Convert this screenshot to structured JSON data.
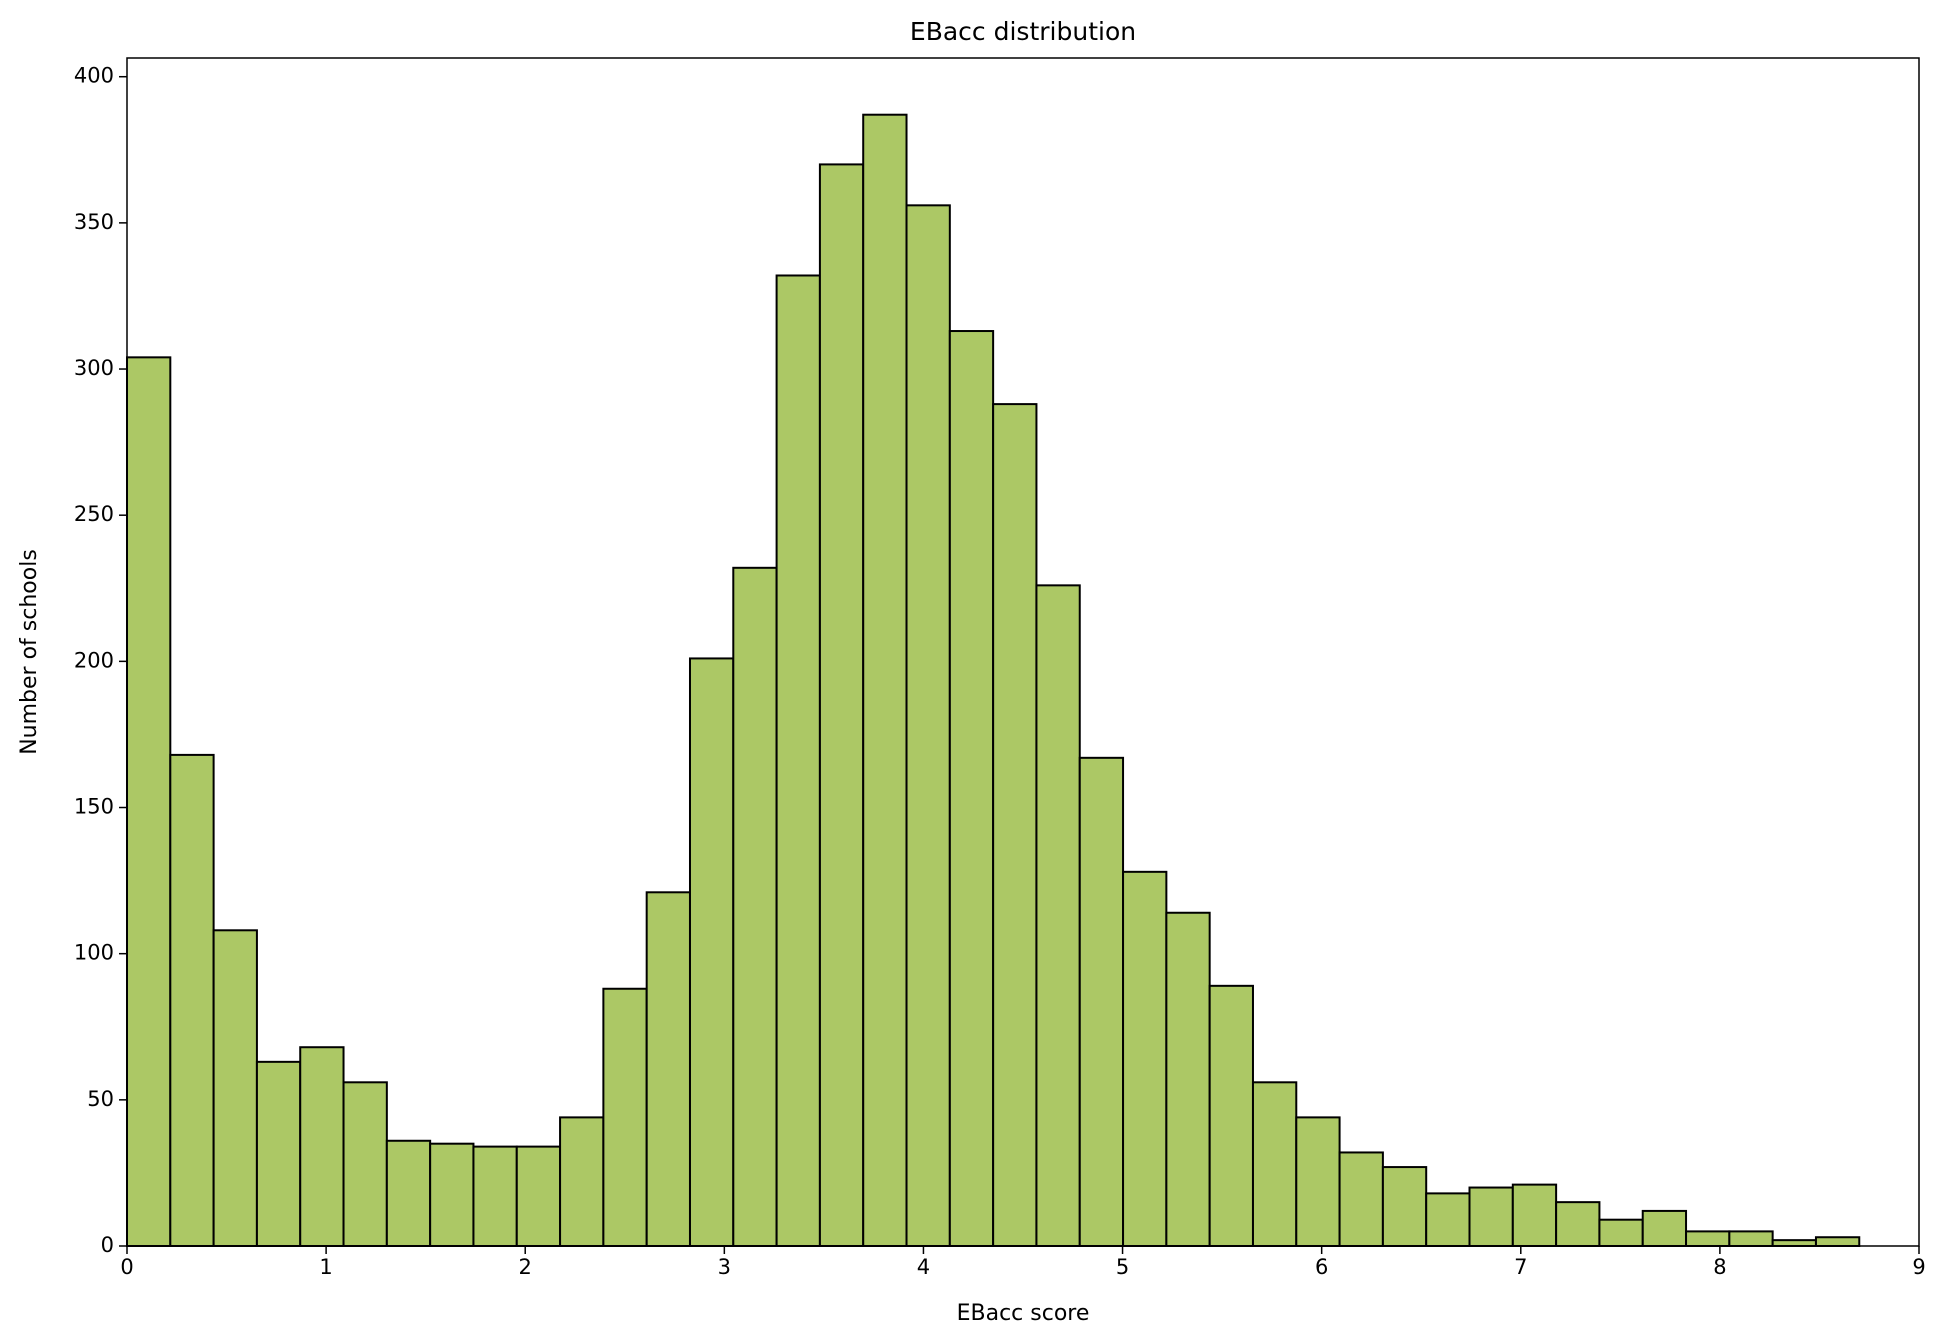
{
  "chart_data": {
    "type": "histogram",
    "title": "EBacc distribution",
    "x_label": "EBacc score",
    "y_label": "Number of schools",
    "bins": [
      0,
      0.2175,
      0.435,
      0.6525,
      0.87,
      1.0875,
      1.305,
      1.5225,
      1.74,
      1.9575,
      2.175,
      2.3925,
      2.61,
      2.8275,
      3.045,
      3.2625,
      3.48,
      3.6975,
      3.915,
      4.1325,
      4.35,
      4.5675,
      4.785,
      5.0025,
      5.22,
      5.4375,
      5.655,
      5.8725,
      6.09,
      6.3075,
      6.525,
      6.7425,
      6.96,
      7.1775,
      7.395,
      7.6125,
      7.83,
      8.0475,
      8.265,
      8.4825,
      8.7
    ],
    "values": [
      304,
      168,
      108,
      63,
      68,
      56,
      36,
      35,
      34,
      34,
      44,
      88,
      121,
      201,
      232,
      332,
      370,
      387,
      356,
      313,
      288,
      226,
      167,
      128,
      114,
      89,
      56,
      44,
      32,
      27,
      18,
      20,
      21,
      15,
      9,
      12,
      5,
      5,
      2,
      3
    ],
    "color": "#acc865",
    "edgecolor": "#000000",
    "xlim": [
      0,
      9
    ],
    "xticks": [
      0,
      1,
      2,
      3,
      4,
      5,
      6,
      7,
      8,
      9
    ],
    "ylim": [
      0,
      406.4
    ],
    "yticks": [
      0,
      50,
      100,
      150,
      200,
      250,
      300,
      350,
      400
    ],
    "grid": false
  }
}
